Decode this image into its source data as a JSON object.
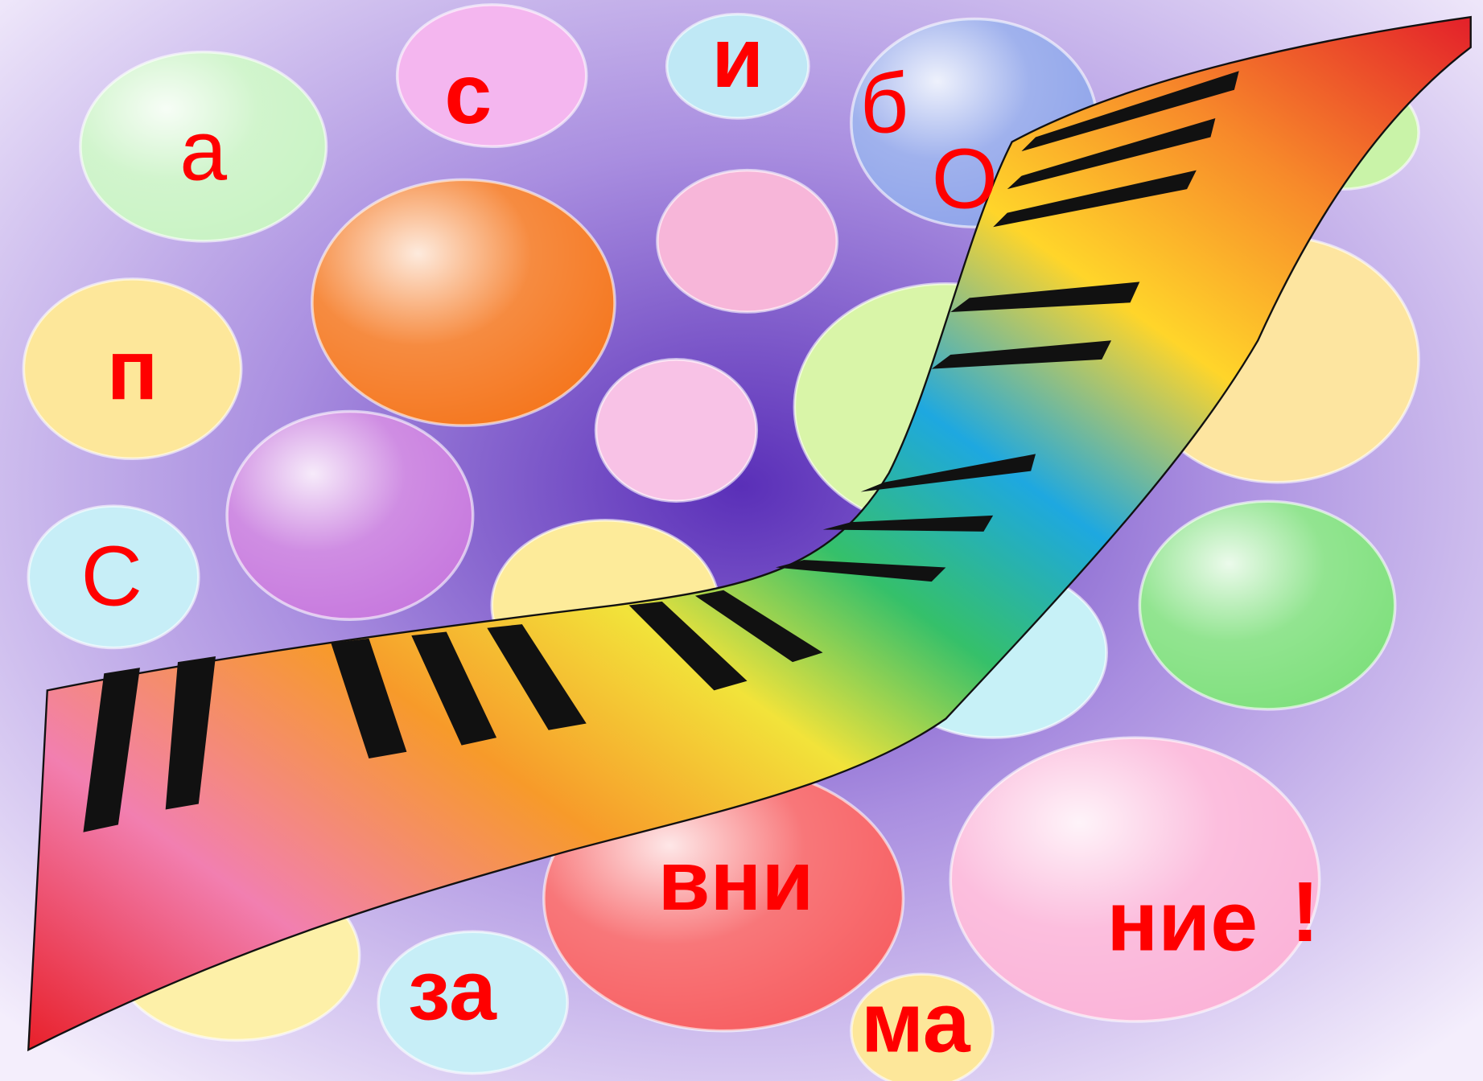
{
  "letters": [
    "С",
    "п",
    "а",
    "с",
    "и",
    "б",
    "О",
    "вни",
    "ма",
    "ние",
    "!",
    "за"
  ]
}
